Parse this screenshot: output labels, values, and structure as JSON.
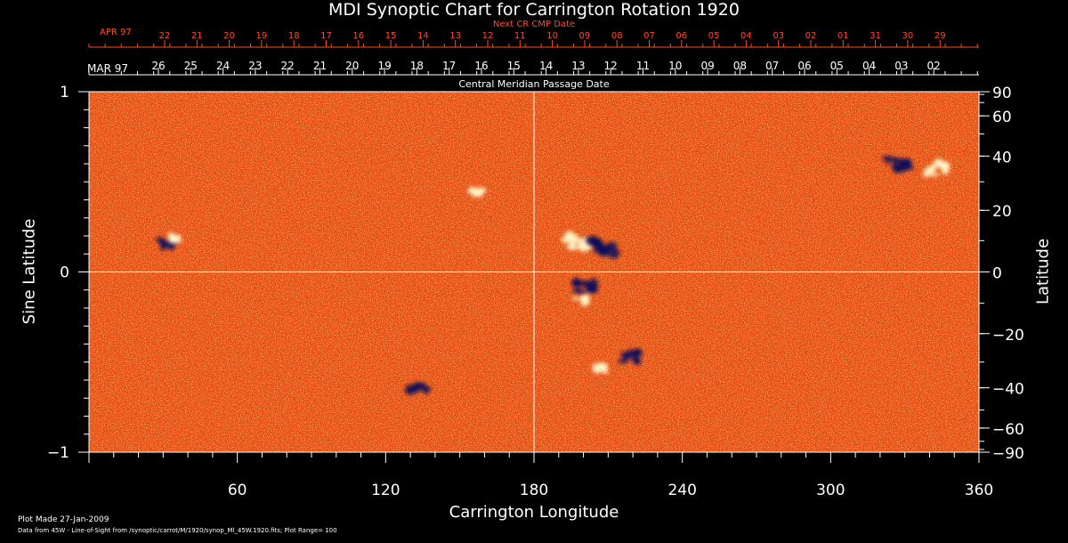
{
  "figure": {
    "title": "MDI Synoptic Chart for Carrington Rotation 1920",
    "x_label": "Carrington Longitude",
    "y_label_left": "Sine Latitude",
    "y_label_right": "Latitude",
    "next_cr_label": "Next CR CMP Date",
    "cmp_label": "Central Meridian Passage Date",
    "top_month": "APR 97",
    "second_month": "MAR 97",
    "footer_line1": "Plot Made 27-Jan-2009",
    "footer_line2": "Data from 45W - Line-of-Sight from /synoptic/carrot/M/1920/synop_Ml_45W.1920.fits; Plot Range=  100"
  },
  "axes": {
    "x_range": [
      0,
      360
    ],
    "x_ticks": [
      60,
      120,
      180,
      240,
      300,
      360
    ],
    "x_tick_labels": [
      "60",
      "120",
      "180",
      "240",
      "300",
      "360"
    ],
    "left_y_range": [
      -1,
      1
    ],
    "left_y_ticks": [
      1,
      0,
      -1
    ],
    "left_y_tick_labels": [
      "1",
      "0",
      "−1"
    ],
    "right_lat_ticks": [
      90,
      60,
      40,
      20,
      0,
      -20,
      -40,
      -60,
      -90
    ],
    "right_lat_tick_labels": [
      "90",
      "60",
      "40",
      "20",
      "0",
      "−20",
      "−40",
      "−60",
      "−90"
    ]
  },
  "date_rows": {
    "next_cr_days": [
      "22",
      "21",
      "20",
      "19",
      "18",
      "17",
      "16",
      "15",
      "14",
      "13",
      "12",
      "11",
      "10",
      "09",
      "08",
      "07",
      "06",
      "05",
      "04",
      "03",
      "02",
      "01",
      "31",
      "30",
      "29"
    ],
    "cmp_days": [
      "26",
      "25",
      "24",
      "23",
      "22",
      "21",
      "20",
      "19",
      "18",
      "17",
      "16",
      "15",
      "14",
      "13",
      "12",
      "11",
      "10",
      "09",
      "08",
      "07",
      "06",
      "05",
      "04",
      "03",
      "02"
    ]
  },
  "colors": {
    "background": "#000000",
    "map_base": "#e64a10",
    "map_light": "#ff9a3c",
    "positive_polarity": "#fff4c8",
    "negative_polarity": "#0a0a5a",
    "next_cr_text": "#ff4a2a",
    "text": "#ffffff"
  },
  "magnetogram_features": [
    {
      "name": "positive-region-north-1",
      "lon": 197,
      "lat": 10,
      "polarity": "positive",
      "strength": 1.0
    },
    {
      "name": "negative-region-north-1",
      "lon": 208,
      "lat": 8,
      "polarity": "negative",
      "strength": 1.0
    },
    {
      "name": "negative-spot-equator-1",
      "lon": 201,
      "lat": -5,
      "polarity": "negative",
      "strength": 0.8
    },
    {
      "name": "positive-spot-equator-1",
      "lon": 199,
      "lat": -9,
      "polarity": "positive",
      "strength": 0.5
    },
    {
      "name": "negative-region-north-2",
      "lon": 327,
      "lat": 37,
      "polarity": "negative",
      "strength": 0.9
    },
    {
      "name": "positive-region-north-2",
      "lon": 343,
      "lat": 35,
      "polarity": "positive",
      "strength": 0.9
    },
    {
      "name": "negative-region-south-1",
      "lon": 219,
      "lat": -28,
      "polarity": "negative",
      "strength": 0.7
    },
    {
      "name": "positive-region-south-1",
      "lon": 207,
      "lat": -32,
      "polarity": "positive",
      "strength": 0.6
    },
    {
      "name": "negative-spot-south-2",
      "lon": 133,
      "lat": -40,
      "polarity": "negative",
      "strength": 0.7
    },
    {
      "name": "negative-spot-north-3",
      "lon": 31,
      "lat": 9,
      "polarity": "negative",
      "strength": 0.6
    },
    {
      "name": "positive-spot-north-3",
      "lon": 34,
      "lat": 11,
      "polarity": "positive",
      "strength": 0.5
    },
    {
      "name": "positive-spot-north-4",
      "lon": 157,
      "lat": 26,
      "polarity": "positive",
      "strength": 0.5
    }
  ]
}
